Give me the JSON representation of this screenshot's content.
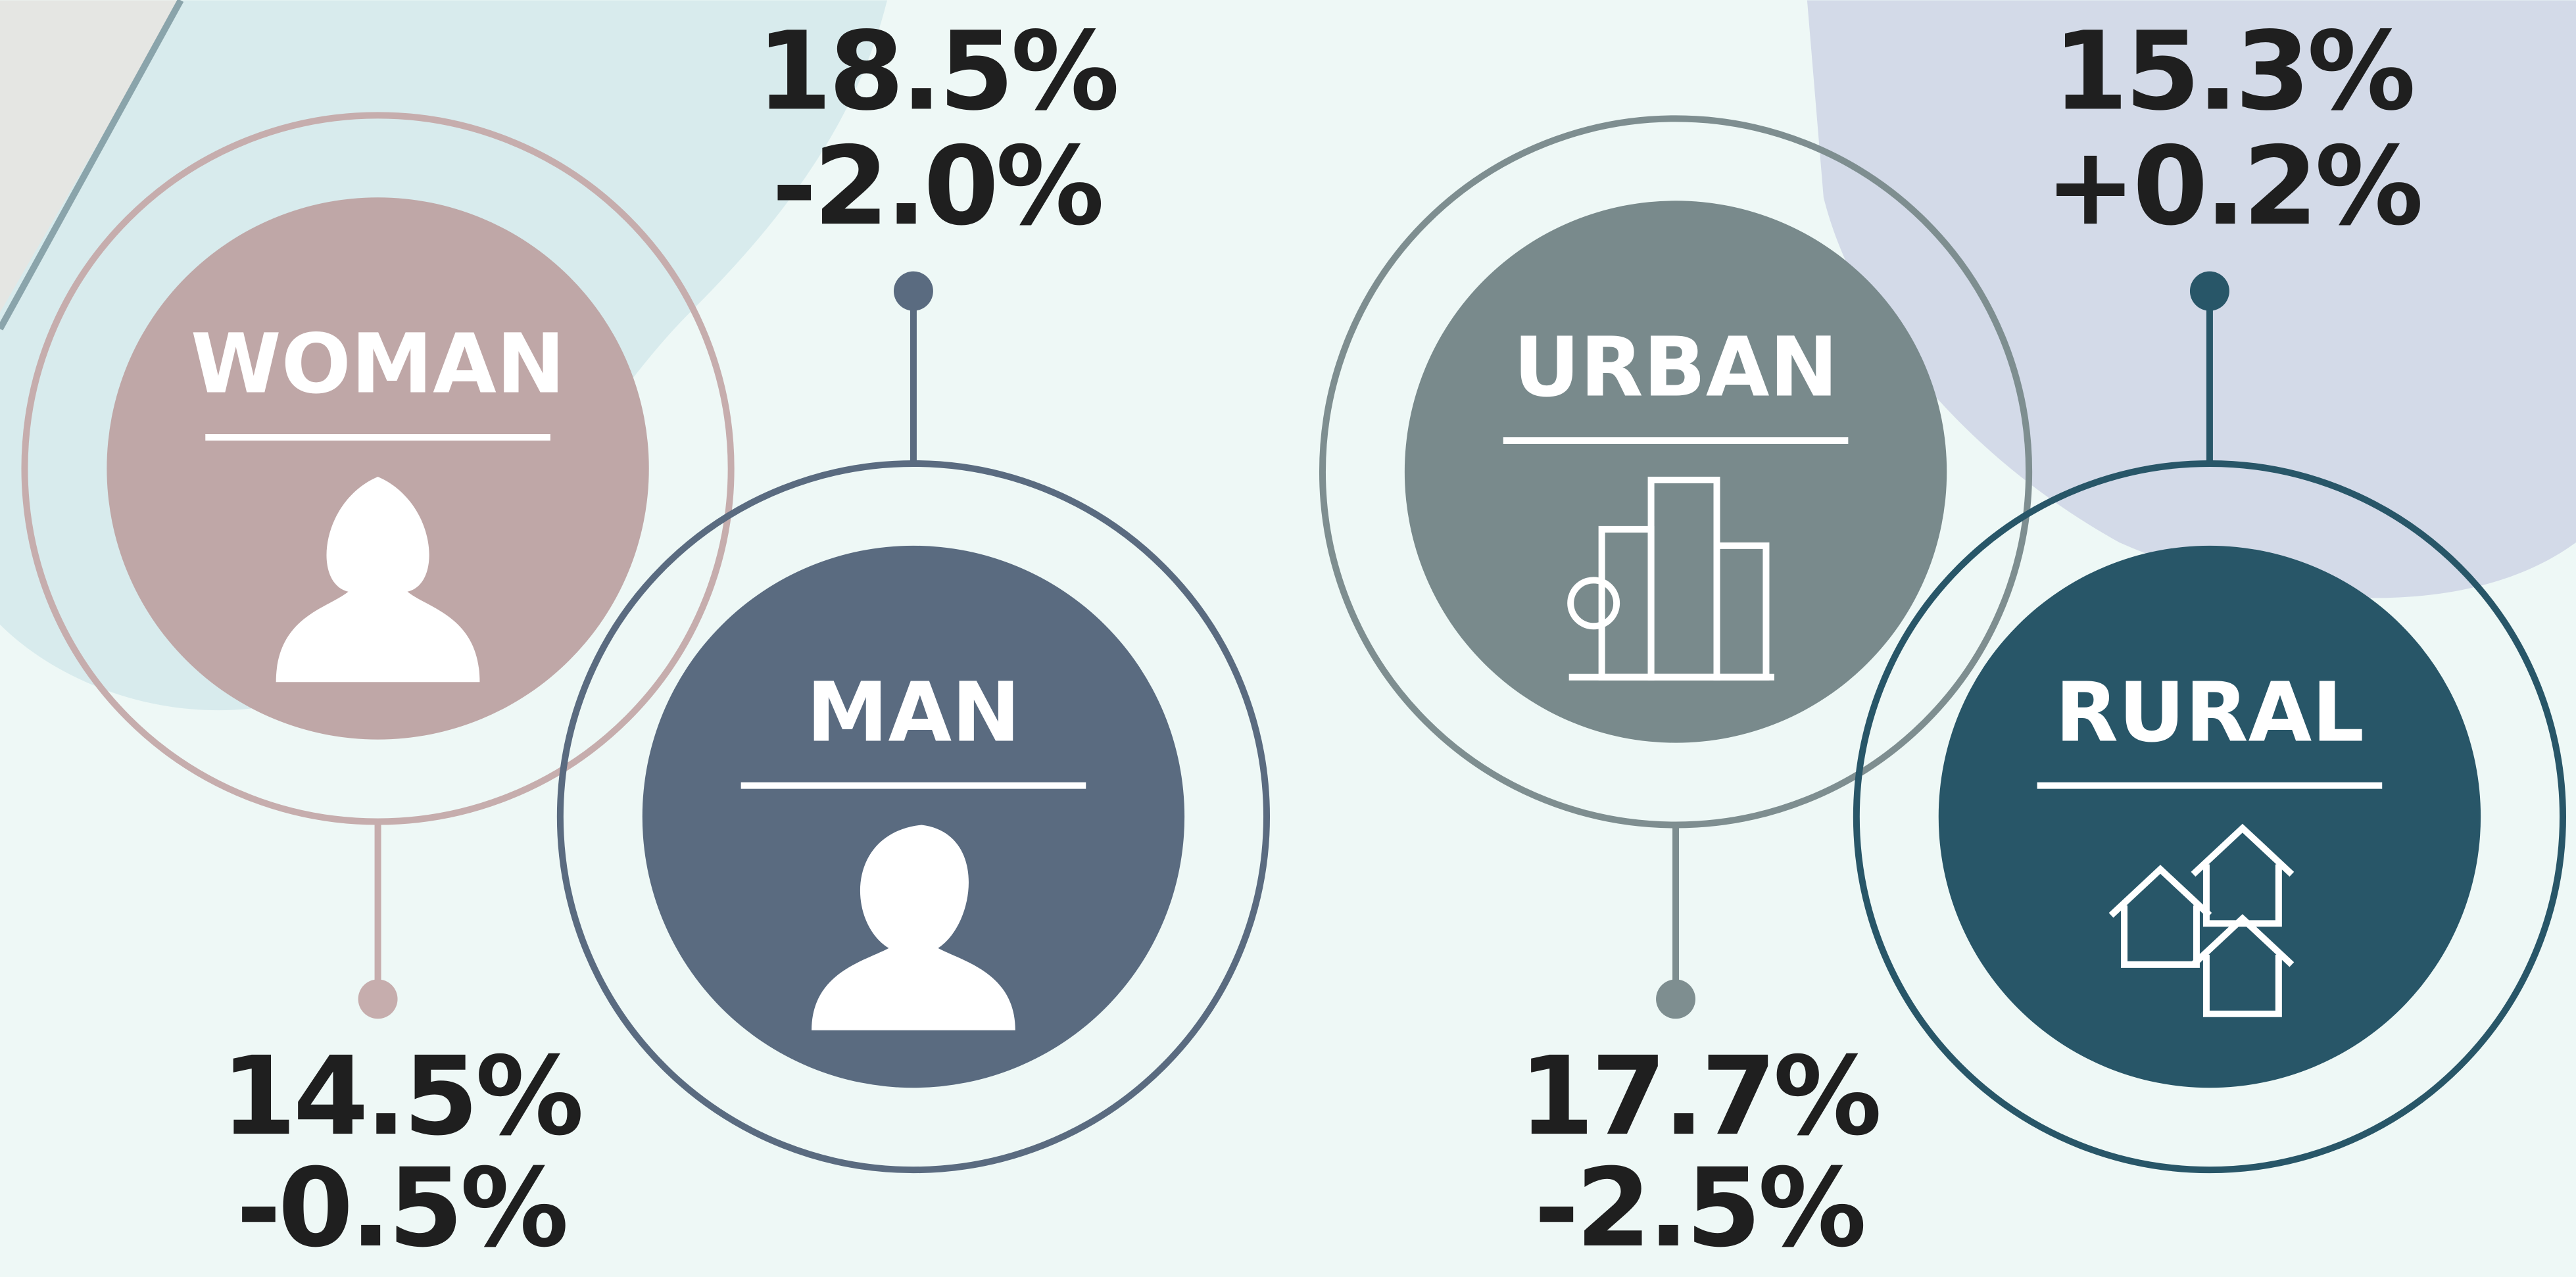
{
  "items": [
    {
      "label": "WOMAN",
      "value": "14.5%",
      "change": "-0.5%"
    },
    {
      "label": "MAN",
      "value": "18.5%",
      "change": "-2.0%"
    },
    {
      "label": "URBAN",
      "value": "17.7%",
      "change": "-2.5%"
    },
    {
      "label": "RURAL",
      "value": "15.3%",
      "change": "+0.2%"
    }
  ]
}
